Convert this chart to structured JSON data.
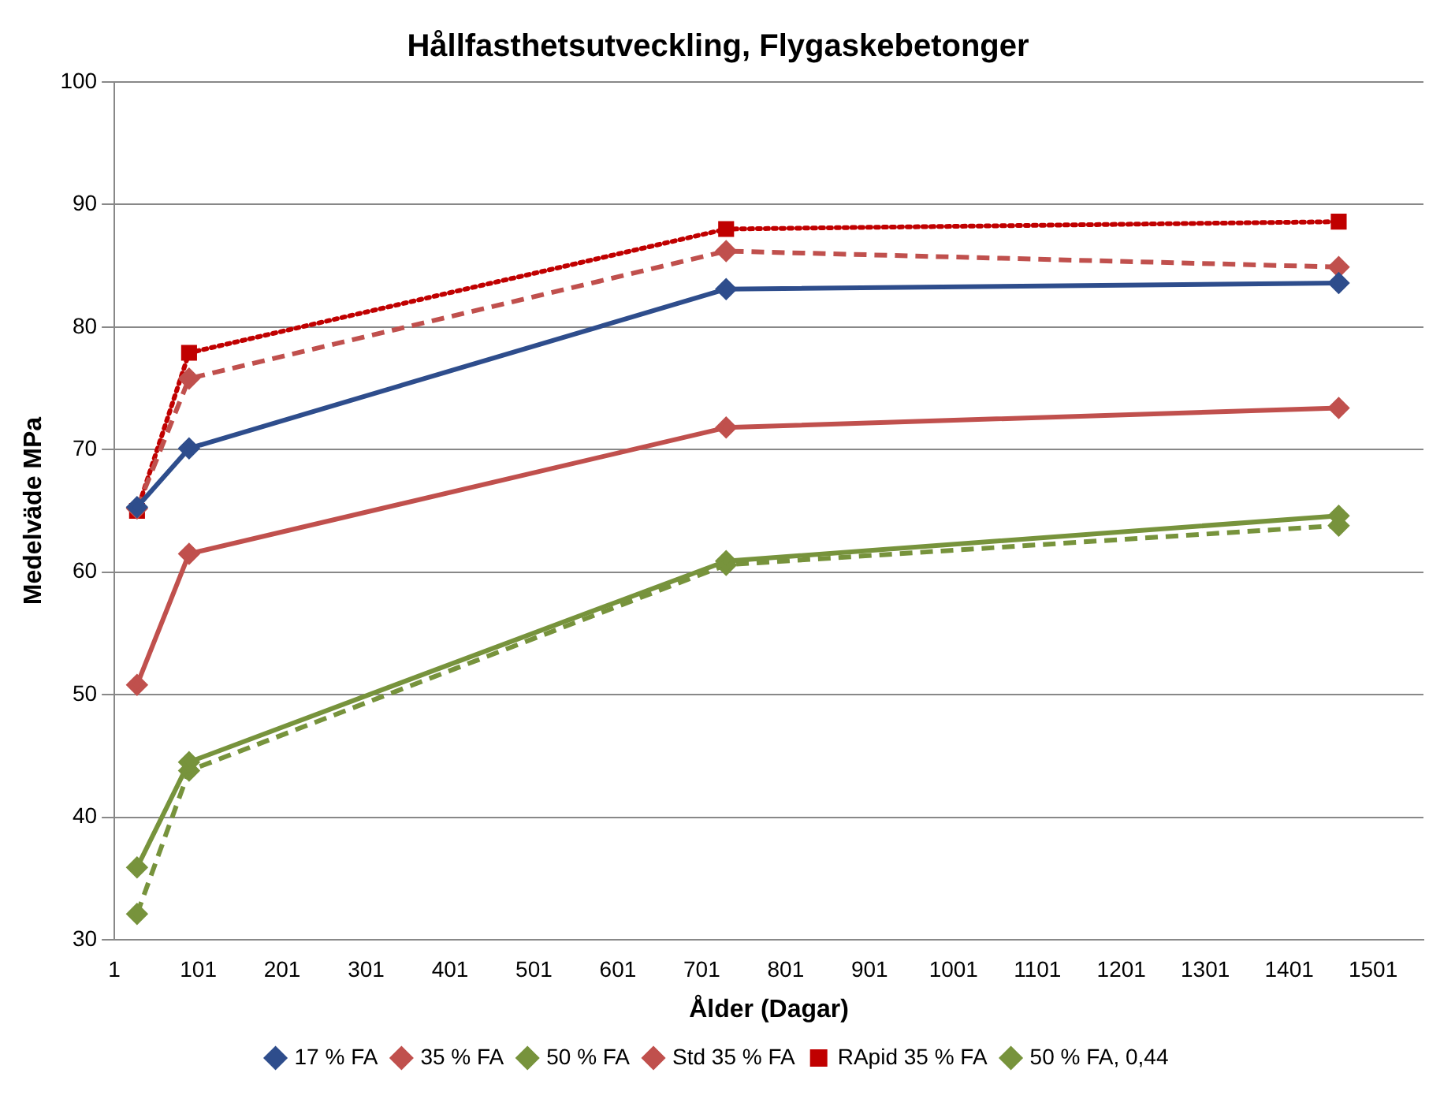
{
  "chart_data": {
    "type": "line",
    "title": "Hållfasthetsutveckling, Flygaskebetonger",
    "xlabel": "Ålder (Dagar)",
    "ylabel": "Medelväde MPa",
    "x": [
      28,
      90,
      730,
      1460
    ],
    "xlim": [
      1,
      1561
    ],
    "xticks": [
      1,
      101,
      201,
      301,
      401,
      501,
      601,
      701,
      801,
      901,
      1001,
      1101,
      1201,
      1301,
      1401,
      1501
    ],
    "ylim": [
      30,
      100
    ],
    "yticks": [
      30,
      40,
      50,
      60,
      70,
      80,
      90,
      100
    ],
    "grid": "y",
    "legend": "bottom",
    "marker": "diamond",
    "line_style": "solid",
    "series": [
      {
        "name": "17 % FA",
        "color": "#2e4d8c",
        "values": [
          65.3,
          70.1,
          83.1,
          83.6
        ]
      },
      {
        "name": "35 % FA",
        "color": "#c0504d",
        "values": [
          50.8,
          61.5,
          71.8,
          73.4
        ]
      },
      {
        "name": "50 % FA",
        "color": "#77933c",
        "values": [
          35.9,
          44.5,
          60.9,
          64.6
        ]
      },
      {
        "name": "Std 35 % FA",
        "color": "#c0504d",
        "line_style": "dashed",
        "values": [
          65.2,
          75.8,
          86.2,
          84.9
        ]
      },
      {
        "name": "RApid 35 % FA",
        "color": "#c00000",
        "line_style": "dotted",
        "marker": "square",
        "values": [
          65.0,
          77.9,
          88.0,
          88.6
        ]
      },
      {
        "name": "50 % FA, 0,44",
        "color": "#77933c",
        "line_style": "dashed",
        "values": [
          32.1,
          43.8,
          60.6,
          63.8
        ]
      }
    ]
  }
}
